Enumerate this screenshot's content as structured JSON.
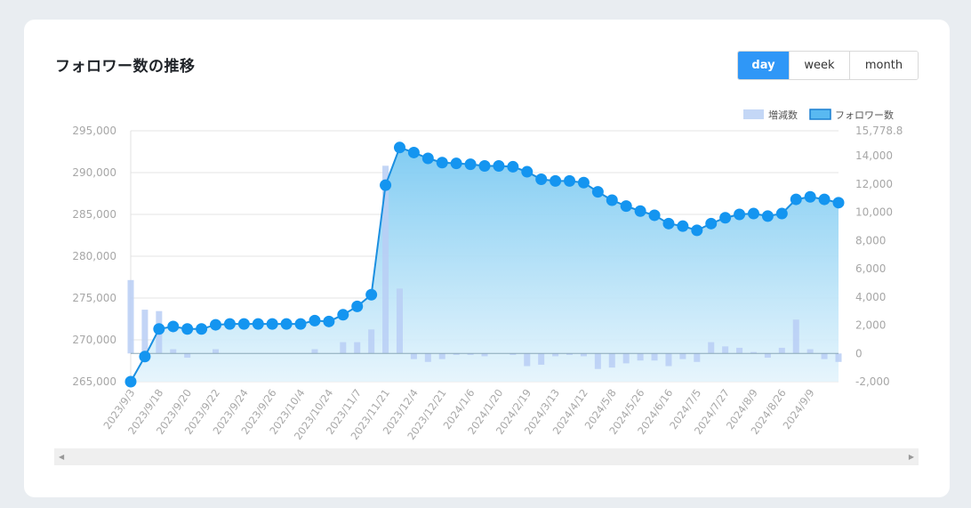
{
  "title": "フォロワー数の推移",
  "period_tabs": [
    {
      "label": "day",
      "active": true
    },
    {
      "label": "week",
      "active": false
    },
    {
      "label": "month",
      "active": false
    }
  ],
  "chart_data": {
    "type": "line",
    "title": "",
    "legend": {
      "placement": "top-right",
      "items": [
        {
          "name": "増減数",
          "color": "#c4d7f6"
        },
        {
          "name": "フォロワー数",
          "color": "#59b9f1"
        }
      ]
    },
    "y_left": {
      "min": 265000,
      "max": 295000,
      "ticks": [
        "295,000",
        "290,000",
        "285,000",
        "280,000",
        "275,000",
        "270,000",
        "265,000"
      ]
    },
    "y_right": {
      "min": -2000,
      "max": 15778.8,
      "ticks": [
        "15,778.8",
        "14,000",
        "12,000",
        "10,000",
        "8,000",
        "6,000",
        "4,000",
        "2,000",
        "0",
        "-2,000"
      ]
    },
    "x_tick_labels": [
      "2023/9/3",
      "2023/9/18",
      "2023/9/20",
      "2023/9/22",
      "2023/9/24",
      "2023/9/26",
      "2023/10/4",
      "2023/10/24",
      "2023/11/7",
      "2023/11/21",
      "2023/12/4",
      "2023/12/21",
      "2024/1/6",
      "2024/1/20",
      "2024/2/19",
      "2024/3/13",
      "2024/4/12",
      "2024/5/8",
      "2024/5/26",
      "2024/6/16",
      "2024/7/5",
      "2024/7/27",
      "2024/8/9",
      "2024/8/26",
      "2024/9/9"
    ],
    "grid": true,
    "series": [
      {
        "name": "フォロワー数",
        "type": "area-line",
        "values": [
          265000,
          268000,
          271300,
          271600,
          271300,
          271300,
          271800,
          271900,
          271900,
          271900,
          271900,
          271900,
          271900,
          272300,
          272200,
          273000,
          274000,
          275400,
          288500,
          293000,
          292400,
          291700,
          291200,
          291100,
          291000,
          290800,
          290800,
          290700,
          290100,
          289200,
          289000,
          289000,
          288800,
          287700,
          286700,
          286000,
          285400,
          284900,
          283900,
          283600,
          283100,
          283900,
          284600,
          285000,
          285100,
          284800,
          285100,
          286800,
          287100,
          286800,
          286400
        ]
      },
      {
        "name": "増減数",
        "type": "bar",
        "values": [
          5200,
          3100,
          3000,
          300,
          -300,
          0,
          300,
          0,
          0,
          0,
          0,
          0,
          0,
          300,
          0,
          800,
          800,
          1700,
          13300,
          4600,
          -400,
          -600,
          -400,
          -100,
          -100,
          -200,
          0,
          -100,
          -900,
          -800,
          -200,
          -100,
          -200,
          -1100,
          -1000,
          -700,
          -500,
          -500,
          -900,
          -400,
          -600,
          800,
          500,
          400,
          100,
          -300,
          400,
          2400,
          300,
          -400,
          -600
        ]
      }
    ]
  }
}
